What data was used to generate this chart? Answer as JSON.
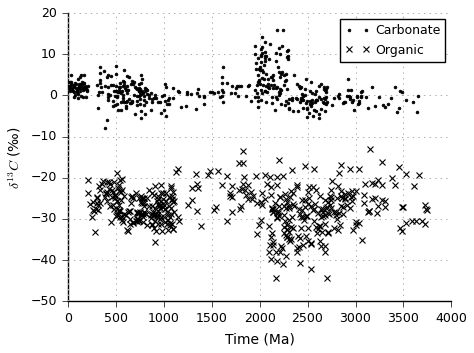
{
  "title": "",
  "xlabel": "Time (Ma)",
  "ylabel": "$\\delta^{13}C$ (‰‰)",
  "xlim": [
    0,
    4000
  ],
  "ylim": [
    -50,
    20
  ],
  "yticks": [
    -50,
    -40,
    -30,
    -20,
    -10,
    0,
    10,
    20
  ],
  "xticks": [
    0,
    500,
    1000,
    1500,
    2000,
    2500,
    3000,
    3500,
    4000
  ],
  "carbonate_color": "#000000",
  "organic_color": "#000000",
  "bg_color": "#ffffff",
  "grid_color": "#aaaaaa",
  "legend_loc": "upper right",
  "figsize": [
    4.74,
    3.53
  ],
  "dpi": 100,
  "carbonate_seed": 10,
  "organic_seed": 20
}
